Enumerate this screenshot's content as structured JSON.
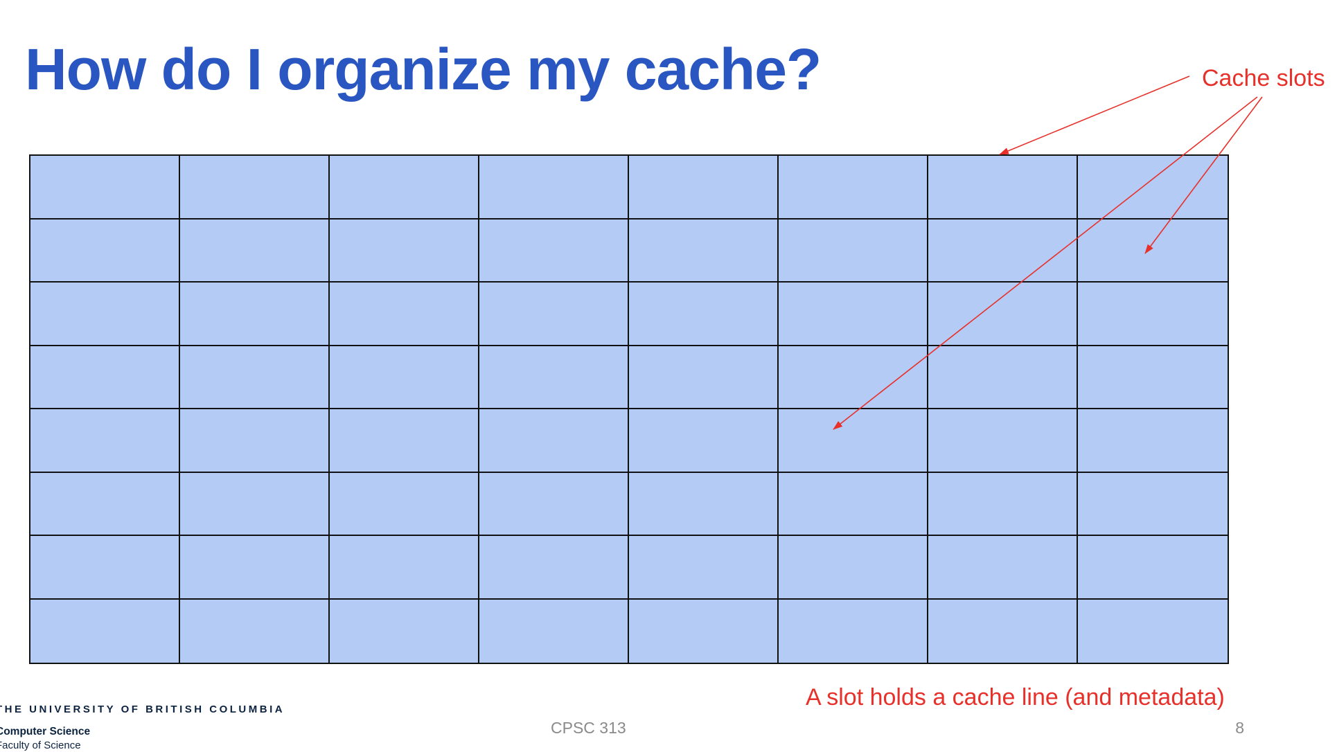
{
  "slide": {
    "title": "How do I organize my cache?",
    "annotations": {
      "slots_label": "Cache slots",
      "line_label": "A slot holds a cache line (and metadata)"
    },
    "cache_grid": {
      "rows": 8,
      "cols": 8,
      "fill_color": "#B4CBF5",
      "border_color": "#111111"
    },
    "footer": {
      "course": "CPSC 313",
      "page_number": "8",
      "university": "THE UNIVERSITY OF BRITISH COLUMBIA",
      "department": "Computer Science",
      "faculty": "Faculty of Science"
    }
  },
  "colors": {
    "title": "#2956C0",
    "annotation": "#E8302A",
    "footer_text": "#8a8a8a",
    "ubc_text": "#0c2340"
  }
}
